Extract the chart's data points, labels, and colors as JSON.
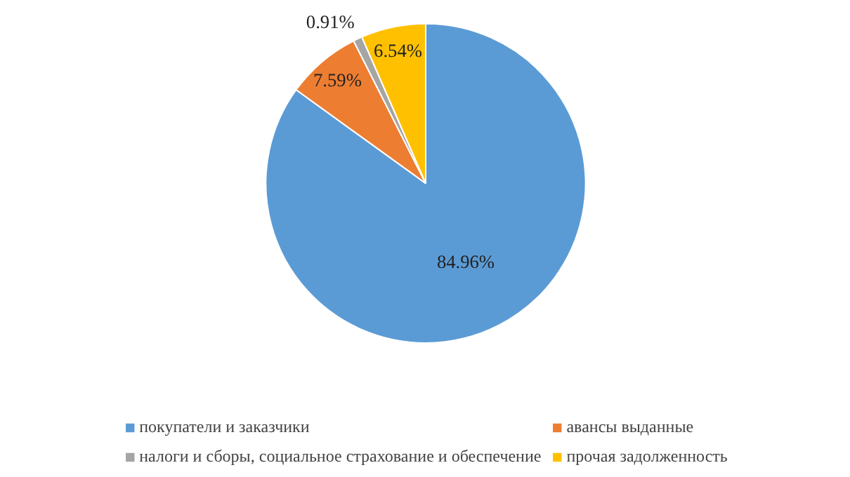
{
  "chart_data": {
    "type": "pie",
    "categories": [
      "покупатели и заказчики",
      "авансы выданные",
      "налоги и сборы, социальное страхование и обеспечение",
      "прочая задолженность"
    ],
    "values": [
      84.96,
      7.59,
      0.91,
      6.54
    ],
    "colors": [
      "#5b9bd5",
      "#ed7d31",
      "#a5a5a5",
      "#ffc000"
    ],
    "value_labels": [
      "84.96%",
      "7.59%",
      "0.91%",
      "6.54%"
    ],
    "legend": "bottom"
  }
}
